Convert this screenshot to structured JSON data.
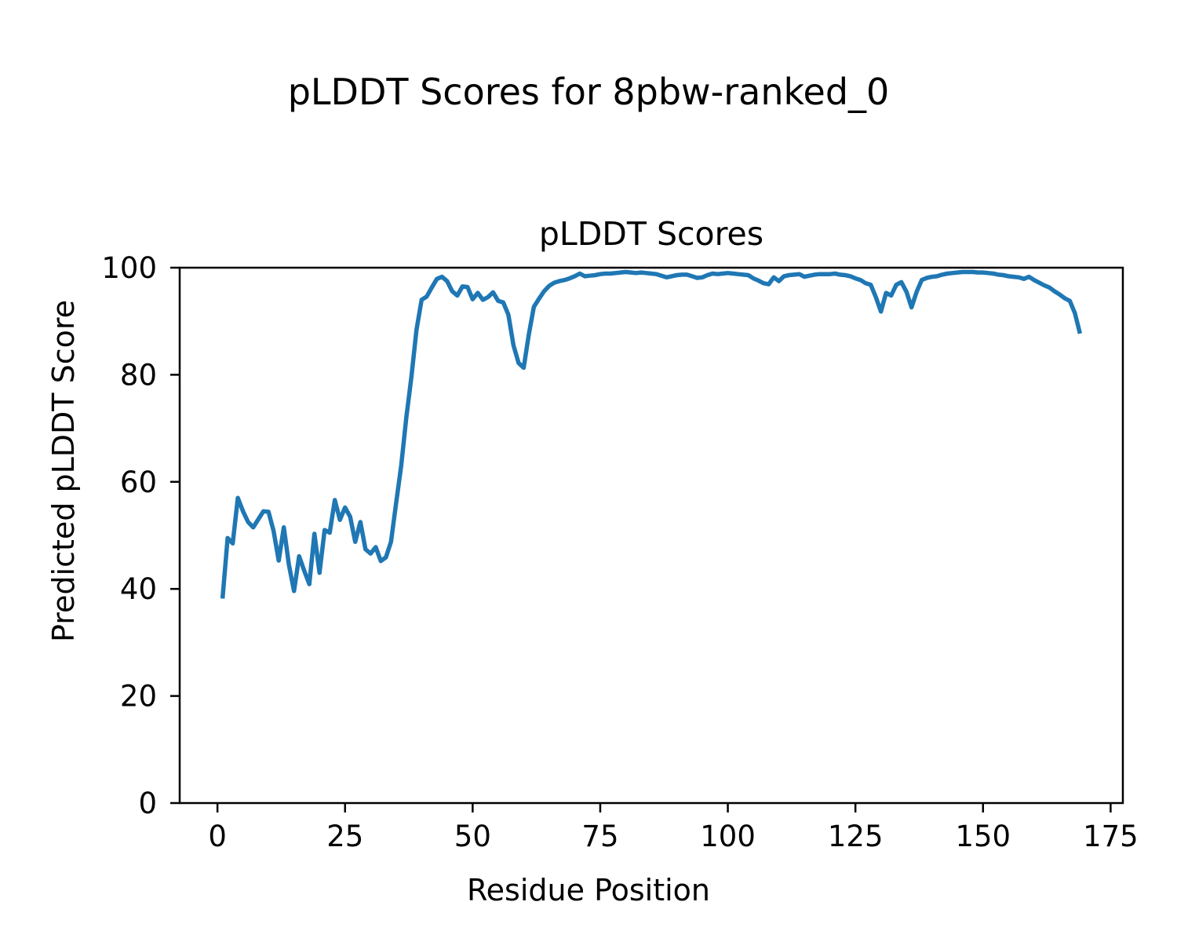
{
  "figure": {
    "suptitle": "pLDDT Scores for 8pbw-ranked_0"
  },
  "chart_data": {
    "type": "line",
    "title": "pLDDT Scores",
    "xlabel": "Residue Position",
    "ylabel": "Predicted pLDDT Score",
    "xlim": [
      -7.4,
      177.4
    ],
    "ylim": [
      0,
      100
    ],
    "xticks": [
      0,
      25,
      50,
      75,
      100,
      125,
      150,
      175
    ],
    "yticks": [
      0,
      20,
      40,
      60,
      80,
      100
    ],
    "grid": false,
    "legend": "none",
    "background": "#ffffff",
    "line_color": "#1f77b4",
    "line_width": 5.5,
    "series": [
      {
        "name": "pLDDT",
        "x": [
          1,
          2,
          3,
          4,
          5,
          6,
          7,
          8,
          9,
          10,
          11,
          12,
          13,
          14,
          15,
          16,
          17,
          18,
          19,
          20,
          21,
          22,
          23,
          24,
          25,
          26,
          27,
          28,
          29,
          30,
          31,
          32,
          33,
          34,
          35,
          36,
          37,
          38,
          39,
          40,
          41,
          42,
          43,
          44,
          45,
          46,
          47,
          48,
          49,
          50,
          51,
          52,
          53,
          54,
          55,
          56,
          57,
          58,
          59,
          60,
          61,
          62,
          63,
          64,
          65,
          66,
          67,
          68,
          69,
          70,
          71,
          72,
          73,
          74,
          75,
          76,
          77,
          78,
          79,
          80,
          81,
          82,
          83,
          84,
          85,
          86,
          87,
          88,
          89,
          90,
          91,
          92,
          93,
          94,
          95,
          96,
          97,
          98,
          99,
          100,
          101,
          102,
          103,
          104,
          105,
          106,
          107,
          108,
          109,
          110,
          111,
          112,
          113,
          114,
          115,
          116,
          117,
          118,
          119,
          120,
          121,
          122,
          123,
          124,
          125,
          126,
          127,
          128,
          129,
          130,
          131,
          132,
          133,
          134,
          135,
          136,
          137,
          138,
          139,
          140,
          141,
          142,
          143,
          144,
          145,
          146,
          147,
          148,
          149,
          150,
          151,
          152,
          153,
          154,
          155,
          156,
          157,
          158,
          159,
          160,
          161,
          162,
          163,
          164,
          165,
          166,
          167,
          168,
          169
        ],
        "y": [
          38.2,
          49.5,
          48.5,
          57.0,
          54.5,
          52.5,
          51.5,
          53.0,
          54.5,
          54.4,
          50.8,
          45.3,
          51.5,
          44.5,
          39.6,
          46.1,
          43.4,
          40.9,
          50.3,
          43.0,
          51.0,
          50.5,
          56.6,
          52.9,
          55.2,
          53.5,
          48.8,
          52.5,
          47.4,
          46.6,
          47.8,
          45.2,
          45.9,
          48.8,
          56.0,
          63.0,
          72.0,
          79.6,
          88.4,
          94.0,
          94.6,
          96.3,
          97.9,
          98.3,
          97.5,
          95.6,
          94.8,
          96.5,
          96.4,
          94.1,
          95.3,
          94.0,
          94.5,
          95.4,
          93.8,
          93.5,
          91.2,
          85.5,
          82.2,
          81.3,
          87.5,
          92.7,
          94.2,
          95.6,
          96.6,
          97.2,
          97.5,
          97.7,
          98.0,
          98.4,
          98.9,
          98.4,
          98.5,
          98.6,
          98.8,
          98.9,
          98.9,
          99.0,
          99.1,
          99.2,
          99.1,
          99.0,
          99.1,
          99.0,
          98.9,
          98.8,
          98.5,
          98.2,
          98.4,
          98.6,
          98.7,
          98.7,
          98.4,
          98.1,
          98.2,
          98.6,
          98.9,
          98.8,
          98.9,
          99.0,
          98.9,
          98.8,
          98.7,
          98.6,
          98.0,
          97.6,
          97.1,
          96.9,
          98.2,
          97.5,
          98.4,
          98.6,
          98.7,
          98.8,
          98.3,
          98.5,
          98.7,
          98.8,
          98.8,
          98.8,
          98.9,
          98.7,
          98.6,
          98.4,
          98.0,
          97.7,
          97.1,
          96.8,
          94.5,
          91.8,
          95.3,
          94.8,
          96.8,
          97.3,
          95.5,
          92.6,
          95.5,
          97.7,
          98.1,
          98.3,
          98.4,
          98.7,
          98.9,
          99.0,
          99.1,
          99.2,
          99.2,
          99.2,
          99.1,
          99.1,
          99.0,
          98.9,
          98.7,
          98.6,
          98.4,
          98.3,
          98.2,
          97.9,
          98.3,
          97.7,
          97.2,
          96.7,
          96.3,
          95.6,
          95.0,
          94.3,
          93.8,
          91.5,
          87.7
        ]
      }
    ]
  }
}
